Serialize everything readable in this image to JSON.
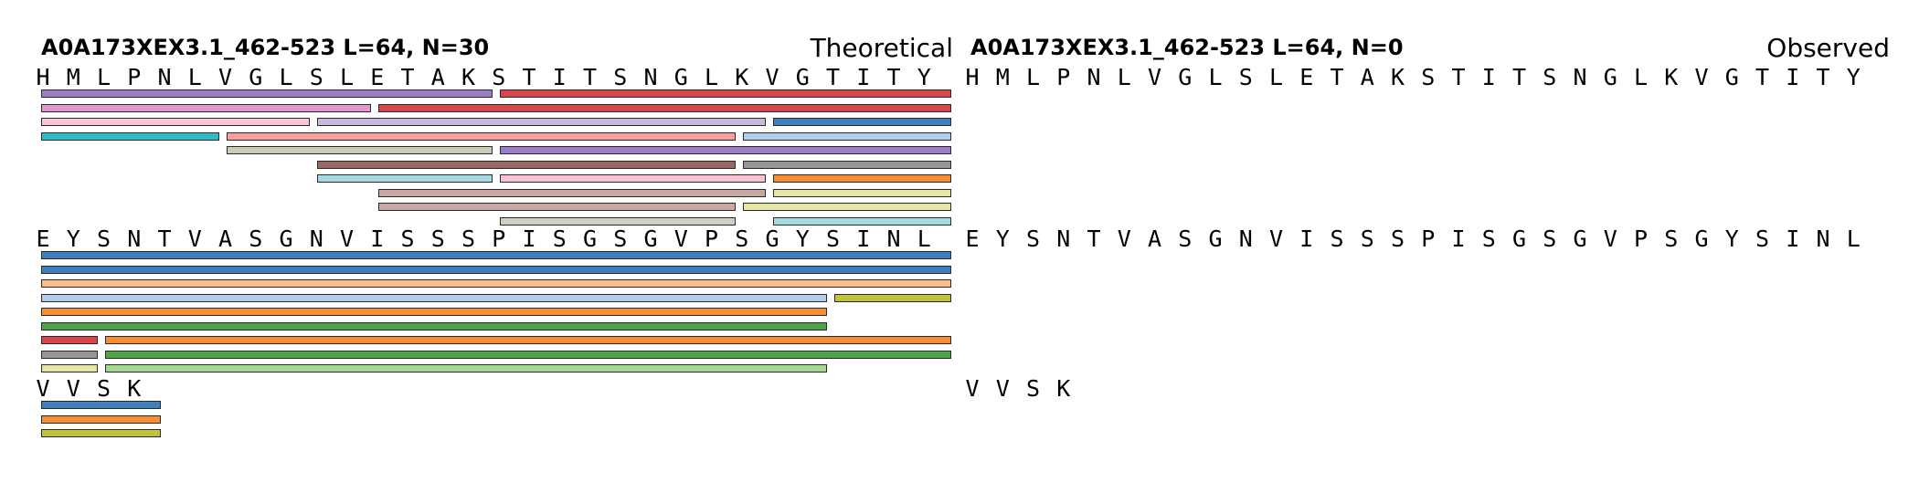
{
  "panels": [
    {
      "title": "A0A173XEX3.1_462-523  L=64, N=30",
      "kind": "Theoretical",
      "rows": [
        {
          "residues": "HMLPNLVGLSLETAKSTITSNGLKVGTITY",
          "peptides": [
            {
              "start": 1,
              "end": 15,
              "color": "#9d7dc6"
            },
            {
              "start": 16,
              "end": 30,
              "color": "#d9454b"
            },
            {
              "start": 1,
              "end": 11,
              "color": "#e397cf"
            },
            {
              "start": 12,
              "end": 30,
              "color": "#d9454b"
            },
            {
              "start": 1,
              "end": 9,
              "color": "#fcc3d8"
            },
            {
              "start": 10,
              "end": 24,
              "color": "#c8b8de"
            },
            {
              "start": 25,
              "end": 30,
              "color": "#3e80bd"
            },
            {
              "start": 1,
              "end": 6,
              "color": "#2fbbcc"
            },
            {
              "start": 7,
              "end": 23,
              "color": "#fa9f9c"
            },
            {
              "start": 24,
              "end": 30,
              "color": "#b5cde8"
            },
            {
              "start": 7,
              "end": 15,
              "color": "#cbcbb8"
            },
            {
              "start": 16,
              "end": 30,
              "color": "#9d7dc6"
            },
            {
              "start": 10,
              "end": 23,
              "color": "#9a6a62"
            },
            {
              "start": 24,
              "end": 30,
              "color": "#969696"
            },
            {
              "start": 10,
              "end": 15,
              "color": "#a7dbe3"
            },
            {
              "start": 16,
              "end": 24,
              "color": "#fbbfd7"
            },
            {
              "start": 25,
              "end": 30,
              "color": "#f78e33"
            },
            {
              "start": 12,
              "end": 24,
              "color": "#c9a8a3"
            },
            {
              "start": 25,
              "end": 30,
              "color": "#e5e6a3"
            },
            {
              "start": 12,
              "end": 23,
              "color": "#c9a8a3"
            },
            {
              "start": 24,
              "end": 30,
              "color": "#e5e6a3"
            },
            {
              "start": 16,
              "end": 23,
              "color": "#cfcfc4"
            },
            {
              "start": 25,
              "end": 30,
              "color": "#a7dbe3"
            }
          ]
        },
        {
          "residues": "EYSNTVASGNVISSSPISGSGVPSGYSINL",
          "peptides": [
            {
              "start": 1,
              "end": 30,
              "color": "#3e80bd"
            },
            {
              "start": 1,
              "end": 30,
              "color": "#3e80bd"
            },
            {
              "start": 1,
              "end": 30,
              "color": "#fbbf8a"
            },
            {
              "start": 1,
              "end": 26,
              "color": "#b5cde8"
            },
            {
              "start": 27,
              "end": 30,
              "color": "#c4c13c"
            },
            {
              "start": 1,
              "end": 26,
              "color": "#f78e33"
            },
            {
              "start": 1,
              "end": 26,
              "color": "#4ca648"
            },
            {
              "start": 1,
              "end": 2,
              "color": "#d9454b"
            },
            {
              "start": 3,
              "end": 30,
              "color": "#f78e33"
            },
            {
              "start": 1,
              "end": 2,
              "color": "#969696"
            },
            {
              "start": 3,
              "end": 30,
              "color": "#4ca648"
            },
            {
              "start": 1,
              "end": 2,
              "color": "#e5e6a3"
            },
            {
              "start": 3,
              "end": 26,
              "color": "#a3da8f"
            }
          ]
        },
        {
          "residues": "VVSK",
          "peptides": [
            {
              "start": 1,
              "end": 4,
              "color": "#3e80bd"
            },
            {
              "start": 1,
              "end": 4,
              "color": "#f78e33"
            },
            {
              "start": 1,
              "end": 4,
              "color": "#c4c13c"
            }
          ]
        }
      ]
    },
    {
      "title": "A0A173XEX3.1_462-523  L=64, N=0",
      "kind": "Observed",
      "rows": [
        {
          "residues": "HMLPNLVGLSLETAKSTITSNGLKVGTITY",
          "peptides": []
        },
        {
          "residues": "EYSNTVASGNVISSSPISGSGVPSGYSINL",
          "peptides": []
        },
        {
          "residues": "VVSK",
          "peptides": []
        }
      ]
    }
  ]
}
